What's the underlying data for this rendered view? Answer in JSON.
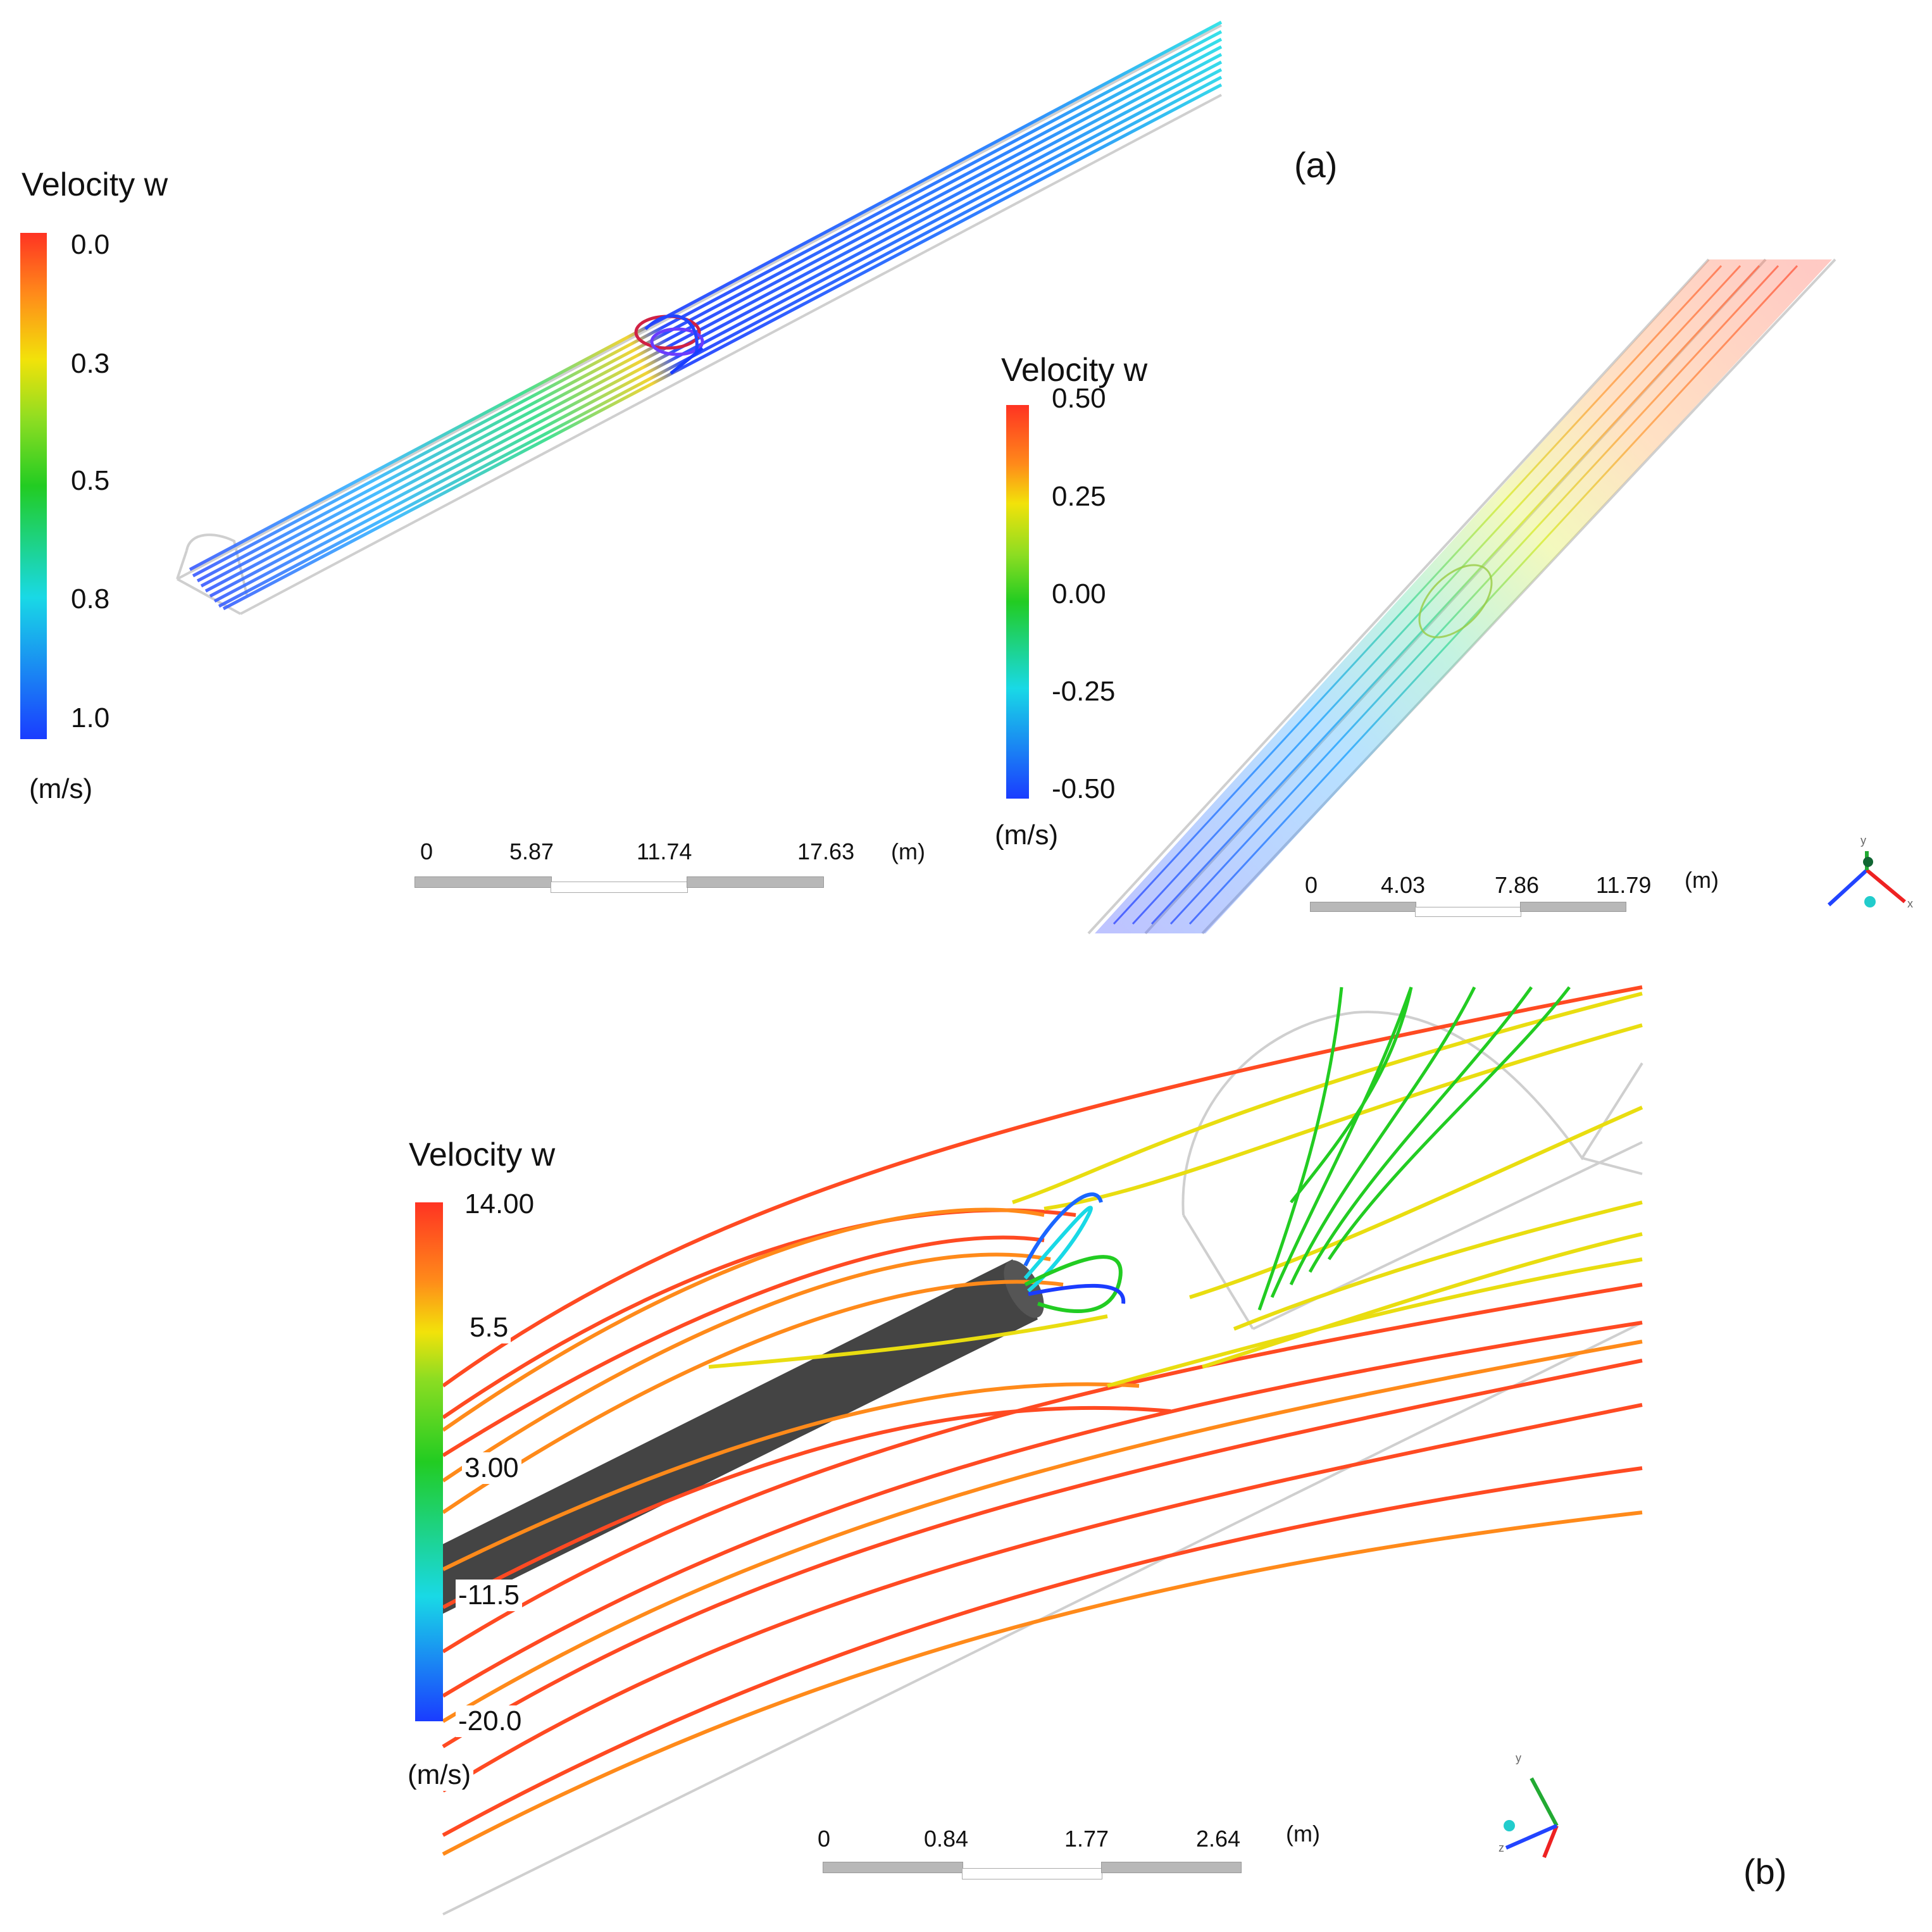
{
  "panels": {
    "a_label": "(a)",
    "b_label": "(b)"
  },
  "legend_a1": {
    "title": "Velocity w",
    "ticks": [
      "0.0",
      "0.3",
      "0.5",
      "0.8",
      "1.0"
    ],
    "unit": "(m/s)"
  },
  "legend_a2": {
    "title": "Velocity w",
    "ticks": [
      "0.50",
      "0.25",
      "0.00",
      "-0.25",
      "-0.50"
    ],
    "unit": "(m/s)"
  },
  "legend_b": {
    "title": "Velocity w",
    "ticks": [
      "14.00",
      "5.5",
      "3.00",
      "-11.5",
      "-20.0"
    ],
    "unit": "(m/s)"
  },
  "scale_a1": {
    "labels": [
      "0",
      "5.87",
      "11.74",
      "17.63"
    ],
    "unit": "(m)"
  },
  "scale_a2": {
    "labels": [
      "0",
      "4.03",
      "7.86",
      "11.79"
    ],
    "unit": "(m)"
  },
  "scale_b": {
    "labels": [
      "0",
      "0.84",
      "1.77",
      "2.64"
    ],
    "unit": "(m)"
  },
  "axes_a": {
    "labels": [
      "y",
      "x"
    ]
  },
  "axes_b": {
    "labels": [
      "y",
      "z"
    ]
  },
  "colors": {
    "red": "#ff3322",
    "orange": "#ff8a1a",
    "yellow": "#f2e20a",
    "green": "#22cc22",
    "cyan": "#19d9e6",
    "blue": "#1a3cff",
    "outline": "#c9c9c9",
    "tube": "#444444"
  }
}
